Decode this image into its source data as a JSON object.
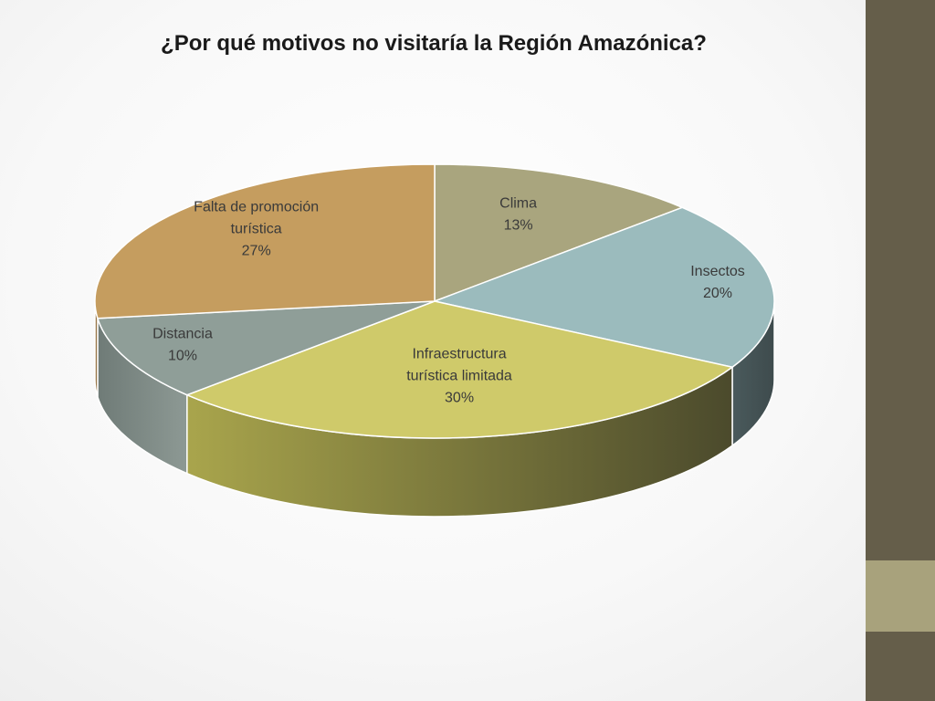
{
  "slide": {
    "title": "¿Por qué motivos no visitaría la Región Amazónica?"
  },
  "colors": {
    "sidebar_dark": "#655e4a",
    "sidebar_light": "#a8a27c"
  },
  "chart_data": {
    "type": "pie",
    "title": "¿Por qué motivos no visitaría la Región Amazónica?",
    "style": "3d",
    "categories": [
      "Clima",
      "Insectos",
      "Infraestructura turística limitada",
      "Distancia",
      "Falta de promoción turística"
    ],
    "series": [
      {
        "values": [
          13,
          20,
          30,
          10,
          27
        ],
        "labels": [
          "13%",
          "20%",
          "30%",
          "10%",
          "27%"
        ]
      }
    ],
    "slices": [
      {
        "category": "Clima",
        "value": 13,
        "value_label": "13%",
        "label_lines": [
          "Clima"
        ],
        "color": "#a9a57e",
        "side_color": "#7c795a"
      },
      {
        "category": "Insectos",
        "value": 20,
        "value_label": "20%",
        "label_lines": [
          "Insectos"
        ],
        "color": "#9bbbbd",
        "side_color": "#4a5a5c"
      },
      {
        "category": "Infraestructura turística limitada",
        "value": 30,
        "value_label": "30%",
        "label_lines": [
          "Infraestructura",
          "turística limitada"
        ],
        "color": "#cfca6a",
        "side_color": "#8a8a40"
      },
      {
        "category": "Distancia",
        "value": 10,
        "value_label": "10%",
        "label_lines": [
          "Distancia"
        ],
        "color": "#8f9e98",
        "side_color": "#6f7c78"
      },
      {
        "category": "Falta de promoción turística",
        "value": 27,
        "value_label": "27%",
        "label_lines": [
          "Falta de promoción",
          "turística"
        ],
        "color": "#c59d5f",
        "side_color": "#9a7a48"
      }
    ]
  }
}
